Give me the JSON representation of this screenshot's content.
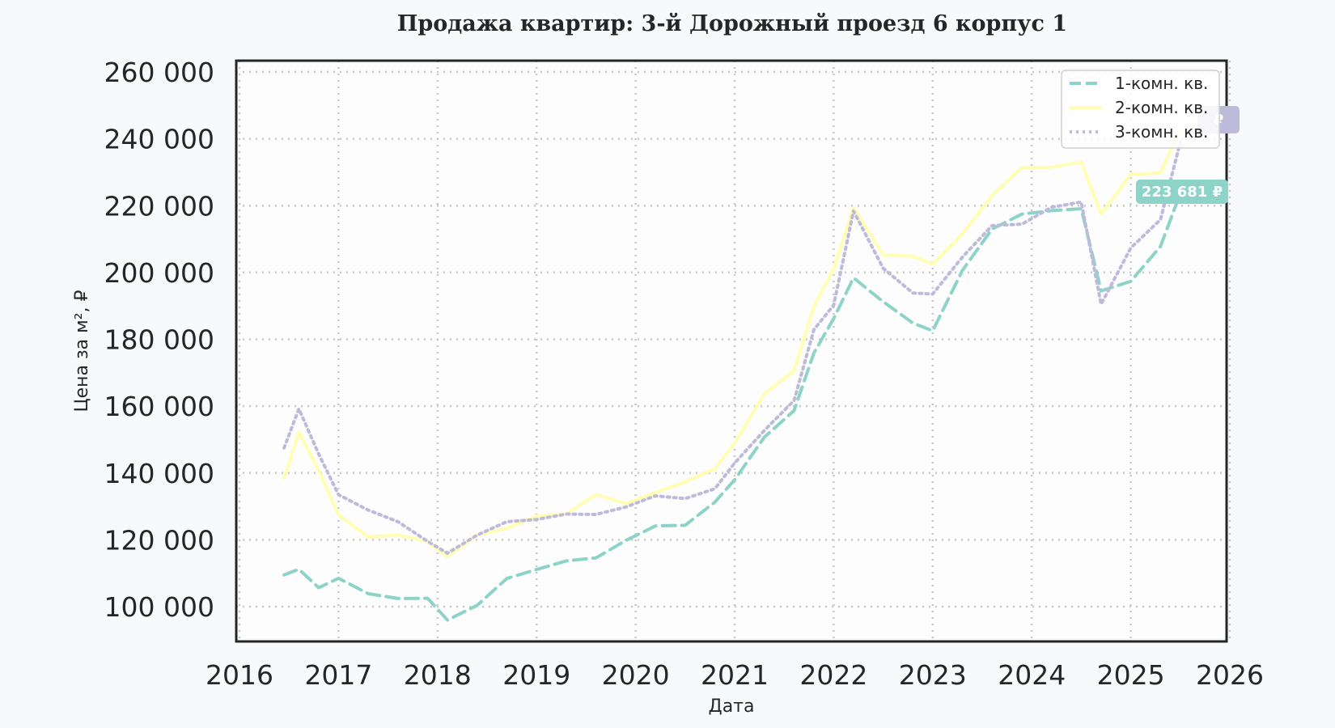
{
  "chart_data": {
    "type": "line",
    "title": "Продажа квартир: 3-й Дорожный проезд 6 корпус 1",
    "xlabel": "Дата",
    "ylabel": "Цена за м², ₽",
    "xlim": [
      2016,
      2026
    ],
    "ylim": [
      90000,
      262000
    ],
    "x_ticks": [
      "2016",
      "2017",
      "2018",
      "2019",
      "2020",
      "2021",
      "2022",
      "2023",
      "2024",
      "2025",
      "2026"
    ],
    "y_ticks": [
      "100 000",
      "120 000",
      "140 000",
      "160 000",
      "180 000",
      "200 000",
      "220 000",
      "240 000",
      "260 000"
    ],
    "y_tick_values": [
      100000,
      120000,
      140000,
      160000,
      180000,
      200000,
      220000,
      240000,
      260000
    ],
    "grid": true,
    "legend_position": "upper right",
    "x": [
      2016.45,
      2016.6,
      2016.8,
      2017.0,
      2017.3,
      2017.6,
      2017.9,
      2018.1,
      2018.4,
      2018.7,
      2019.0,
      2019.3,
      2019.6,
      2019.9,
      2020.2,
      2020.5,
      2020.8,
      2021.0,
      2021.3,
      2021.6,
      2021.8,
      2022.0,
      2022.2,
      2022.5,
      2022.8,
      2023.0,
      2023.3,
      2023.6,
      2023.9,
      2024.2,
      2024.5,
      2024.7,
      2025.0,
      2025.3,
      2025.5
    ],
    "series": [
      {
        "name": "1-комн. кв.",
        "style": "dashed",
        "color": "#8dd3c7",
        "values": [
          111000,
          112000,
          105000,
          107000,
          103000,
          103000,
          104000,
          97000,
          100000,
          107000,
          110000,
          114000,
          116000,
          121000,
          124000,
          123000,
          130000,
          138000,
          152000,
          160000,
          176000,
          185000,
          197000,
          191000,
          186000,
          184000,
          201000,
          212000,
          216000,
          218000,
          220000,
          196000,
          198000,
          207000,
          223681
        ]
      },
      {
        "name": "2-комн. кв.",
        "style": "solid",
        "color": "#ffffb3",
        "values": [
          140000,
          153000,
          140000,
          126000,
          120000,
          122000,
          121000,
          116000,
          121000,
          122000,
          126000,
          128000,
          135000,
          132000,
          134000,
          136000,
          140000,
          149000,
          165000,
          172000,
          190000,
          200000,
          218000,
          205000,
          206000,
          204000,
          212000,
          222000,
          230000,
          231000,
          234000,
          219000,
          230000,
          229000,
          243000
        ]
      },
      {
        "name": "3-комн. кв.",
        "style": "dotted",
        "color": "#bebada",
        "values": [
          149000,
          160000,
          145000,
          132000,
          128000,
          126000,
          121000,
          117000,
          121000,
          124000,
          125000,
          128000,
          129000,
          131000,
          133000,
          131000,
          134000,
          143000,
          154000,
          163000,
          183000,
          189000,
          217000,
          201000,
          195000,
          195000,
          205000,
          213000,
          213000,
          219000,
          222000,
          192000,
          208000,
          215000,
          239000
        ]
      }
    ],
    "annotations": [
      {
        "series": "1-комн. кв.",
        "label": "223 681 ₽",
        "color": "#8dd3c7"
      },
      {
        "series": "3-комн. кв.",
        "label": "₽",
        "color": "#bebada"
      }
    ]
  },
  "legend": {
    "items": [
      "1-комн. кв.",
      "2-комн. кв.",
      "3-комн. кв."
    ]
  },
  "tags": {
    "one_room": "223 681 ₽",
    "three_room": "₽"
  }
}
